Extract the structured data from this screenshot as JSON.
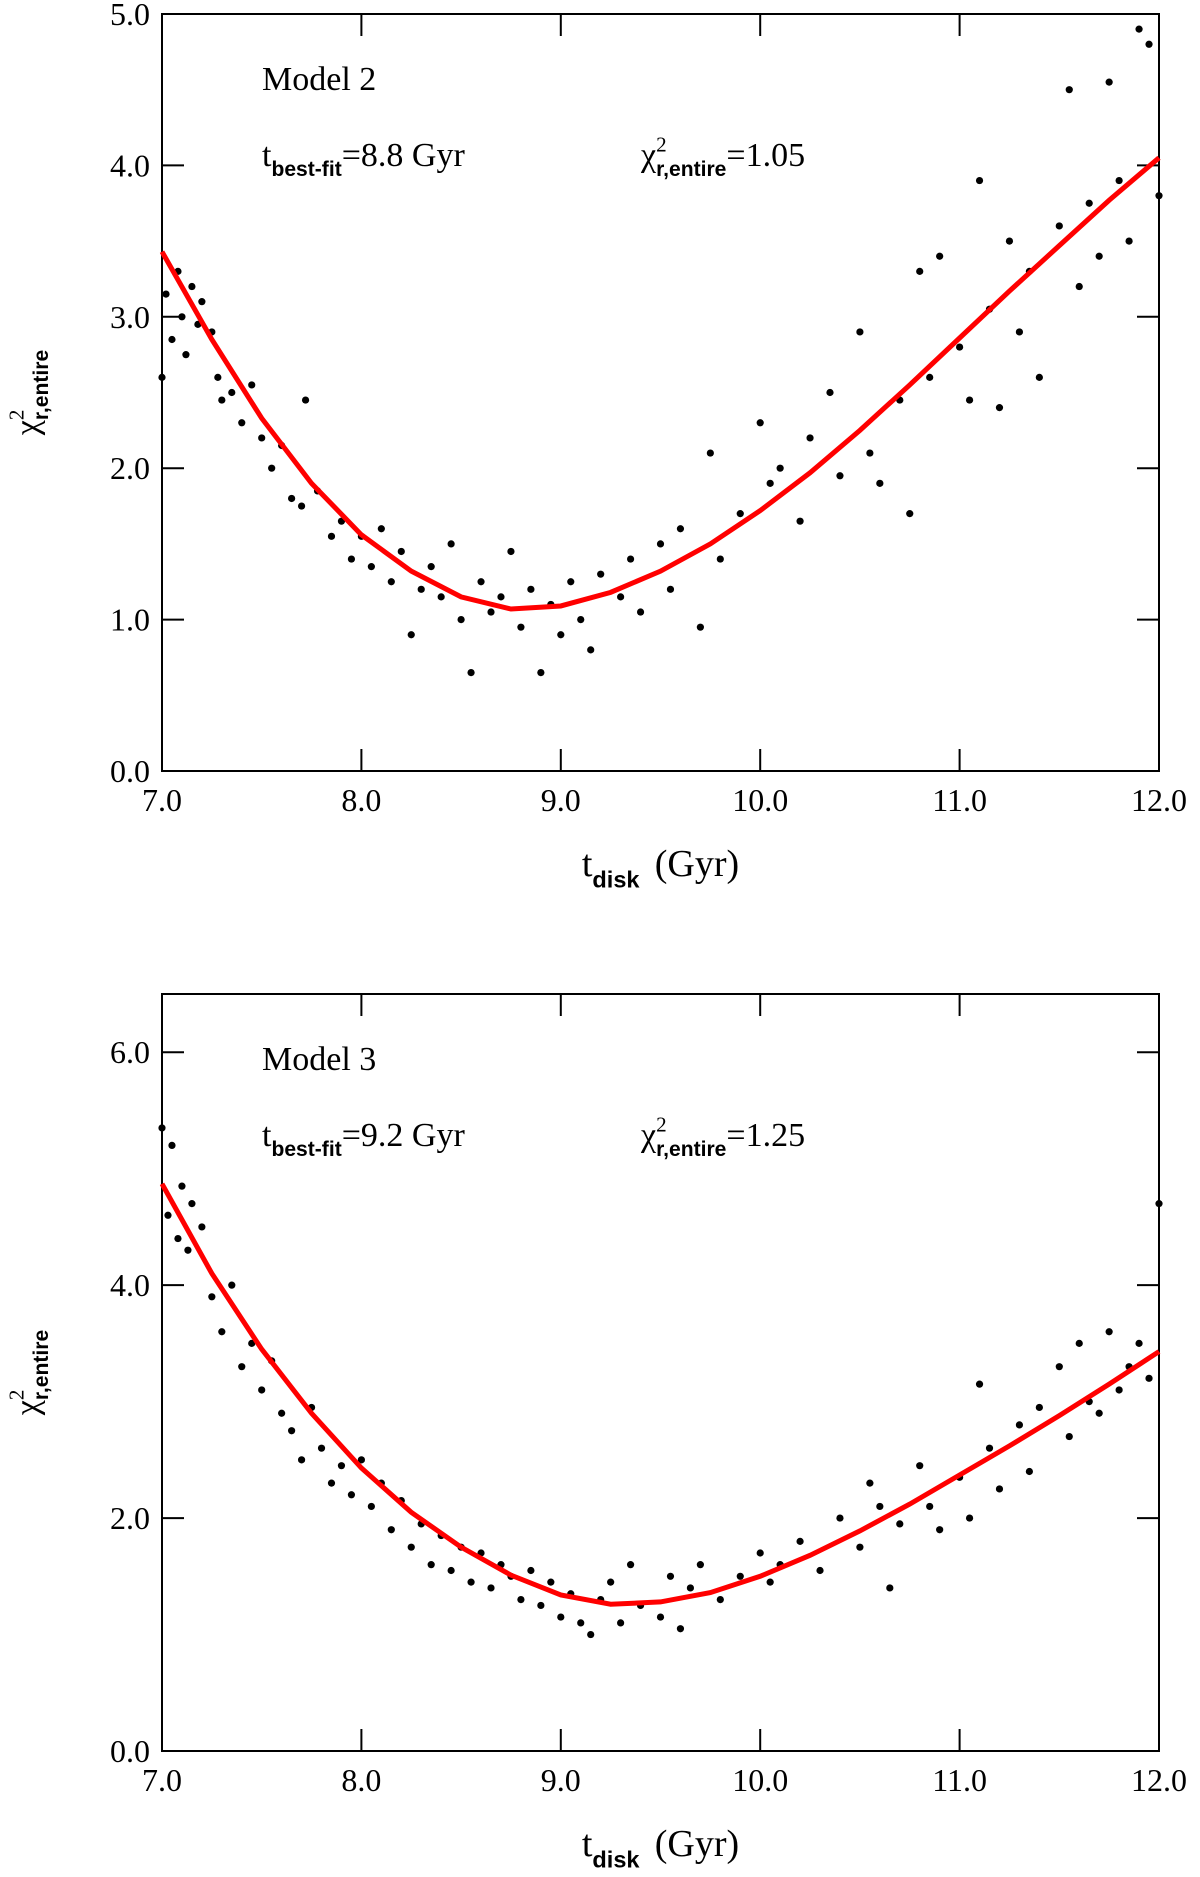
{
  "chart_data": [
    {
      "type": "scatter",
      "title": "Model 2",
      "fit_label": {
        "base": "t",
        "sub": "best-fit",
        "text": "=8.8 Gyr"
      },
      "chi_label": {
        "base": "χ",
        "sup": "2",
        "sub": "r,entire",
        "text": "=1.05"
      },
      "xlabel": {
        "base": "t",
        "sub": "disk",
        "text": "(Gyr)"
      },
      "ylabel": {
        "base": "χ",
        "sup": "2",
        "sub": "r,entire"
      },
      "xlim": [
        7,
        12
      ],
      "ylim": [
        0,
        5
      ],
      "xticks": [
        {
          "value": 7,
          "label": "7.0"
        },
        {
          "value": 8,
          "label": "8.0"
        },
        {
          "value": 9,
          "label": "9.0"
        },
        {
          "value": 10,
          "label": "10.0"
        },
        {
          "value": 11,
          "label": "11.0"
        },
        {
          "value": 12,
          "label": "12.0"
        }
      ],
      "yticks": [
        {
          "value": 0,
          "label": "0.0"
        },
        {
          "value": 1,
          "label": "1.0"
        },
        {
          "value": 2,
          "label": "2.0"
        },
        {
          "value": 3,
          "label": "3.0"
        },
        {
          "value": 4,
          "label": "4.0"
        },
        {
          "value": 5,
          "label": "5.0"
        }
      ],
      "points": {
        "color": "#000000",
        "x": [
          7.0,
          7.02,
          7.05,
          7.08,
          7.1,
          7.12,
          7.15,
          7.18,
          7.2,
          7.25,
          7.28,
          7.3,
          7.35,
          7.4,
          7.45,
          7.5,
          7.55,
          7.6,
          7.65,
          7.7,
          7.72,
          7.78,
          7.85,
          7.9,
          7.95,
          8.0,
          8.05,
          8.1,
          8.15,
          8.2,
          8.25,
          8.3,
          8.35,
          8.4,
          8.45,
          8.5,
          8.55,
          8.6,
          8.65,
          8.7,
          8.75,
          8.8,
          8.85,
          8.9,
          8.95,
          9.0,
          9.05,
          9.1,
          9.15,
          9.2,
          9.3,
          9.35,
          9.4,
          9.5,
          9.55,
          9.6,
          9.7,
          9.75,
          9.8,
          9.9,
          10.0,
          10.05,
          10.1,
          10.2,
          10.25,
          10.35,
          10.4,
          10.5,
          10.55,
          10.6,
          10.7,
          10.75,
          10.8,
          10.85,
          10.9,
          11.0,
          11.05,
          11.1,
          11.15,
          11.2,
          11.25,
          11.3,
          11.35,
          11.4,
          11.5,
          11.55,
          11.6,
          11.65,
          11.7,
          11.75,
          11.8,
          11.85,
          11.9,
          11.95,
          12.0
        ],
        "y": [
          2.6,
          3.15,
          2.85,
          3.3,
          3.0,
          2.75,
          3.2,
          2.95,
          3.1,
          2.9,
          2.6,
          2.45,
          2.5,
          2.3,
          2.55,
          2.2,
          2.0,
          2.15,
          1.8,
          1.75,
          2.45,
          1.85,
          1.55,
          1.65,
          1.4,
          1.55,
          1.35,
          1.6,
          1.25,
          1.45,
          0.9,
          1.2,
          1.35,
          1.15,
          1.5,
          1.0,
          0.65,
          1.25,
          1.05,
          1.15,
          1.45,
          0.95,
          1.2,
          0.65,
          1.1,
          0.9,
          1.25,
          1.0,
          0.8,
          1.3,
          1.15,
          1.4,
          1.05,
          1.5,
          1.2,
          1.6,
          0.95,
          2.1,
          1.4,
          1.7,
          2.3,
          1.9,
          2.0,
          1.65,
          2.2,
          2.5,
          1.95,
          2.9,
          2.1,
          1.9,
          2.45,
          1.7,
          3.3,
          2.6,
          3.4,
          2.8,
          2.45,
          3.9,
          3.05,
          2.4,
          3.5,
          2.9,
          3.3,
          2.6,
          3.6,
          4.5,
          3.2,
          3.75,
          3.4,
          4.55,
          3.9,
          3.5,
          4.9,
          4.8,
          3.8
        ]
      },
      "fit": {
        "color": "#ff0000",
        "x": [
          7.0,
          7.25,
          7.5,
          7.75,
          8.0,
          8.25,
          8.5,
          8.75,
          9.0,
          9.25,
          9.5,
          9.75,
          10.0,
          10.25,
          10.5,
          10.75,
          11.0,
          11.25,
          11.5,
          11.75,
          12.0
        ],
        "y": [
          3.43,
          2.85,
          2.33,
          1.9,
          1.56,
          1.32,
          1.15,
          1.07,
          1.09,
          1.18,
          1.32,
          1.5,
          1.72,
          1.97,
          2.25,
          2.55,
          2.86,
          3.17,
          3.47,
          3.77,
          4.05
        ]
      }
    },
    {
      "type": "scatter",
      "title": "Model 3",
      "fit_label": {
        "base": "t",
        "sub": "best-fit",
        "text": "=9.2 Gyr"
      },
      "chi_label": {
        "base": "χ",
        "sup": "2",
        "sub": "r,entire",
        "text": "=1.25"
      },
      "xlabel": {
        "base": "t",
        "sub": "disk",
        "text": "(Gyr)"
      },
      "ylabel": {
        "base": "χ",
        "sup": "2",
        "sub": "r,entire"
      },
      "xlim": [
        7,
        12
      ],
      "ylim": [
        0,
        6.5
      ],
      "xticks": [
        {
          "value": 7,
          "label": "7.0"
        },
        {
          "value": 8,
          "label": "8.0"
        },
        {
          "value": 9,
          "label": "9.0"
        },
        {
          "value": 10,
          "label": "10.0"
        },
        {
          "value": 11,
          "label": "11.0"
        },
        {
          "value": 12,
          "label": "12.0"
        }
      ],
      "yticks": [
        {
          "value": 0,
          "label": "0.0"
        },
        {
          "value": 2,
          "label": "2.0"
        },
        {
          "value": 4,
          "label": "4.0"
        },
        {
          "value": 6,
          "label": "6.0"
        }
      ],
      "points": {
        "color": "#000000",
        "x": [
          7.0,
          7.03,
          7.05,
          7.08,
          7.1,
          7.13,
          7.15,
          7.2,
          7.25,
          7.3,
          7.35,
          7.4,
          7.45,
          7.5,
          7.55,
          7.6,
          7.65,
          7.7,
          7.75,
          7.8,
          7.85,
          7.9,
          7.95,
          8.0,
          8.05,
          8.1,
          8.15,
          8.2,
          8.25,
          8.3,
          8.35,
          8.4,
          8.45,
          8.5,
          8.55,
          8.6,
          8.65,
          8.7,
          8.75,
          8.8,
          8.85,
          8.9,
          8.95,
          9.0,
          9.05,
          9.1,
          9.15,
          9.2,
          9.25,
          9.3,
          9.35,
          9.4,
          9.5,
          9.55,
          9.6,
          9.65,
          9.7,
          9.8,
          9.9,
          10.0,
          10.05,
          10.1,
          10.2,
          10.3,
          10.4,
          10.5,
          10.55,
          10.6,
          10.65,
          10.7,
          10.8,
          10.85,
          10.9,
          11.0,
          11.05,
          11.1,
          11.15,
          11.2,
          11.3,
          11.35,
          11.4,
          11.5,
          11.55,
          11.6,
          11.65,
          11.7,
          11.75,
          11.8,
          11.85,
          11.9,
          11.95,
          12.0
        ],
        "y": [
          5.35,
          4.6,
          5.2,
          4.4,
          4.85,
          4.3,
          4.7,
          4.5,
          3.9,
          3.6,
          4.0,
          3.3,
          3.5,
          3.1,
          3.35,
          2.9,
          2.75,
          2.5,
          2.95,
          2.6,
          2.3,
          2.45,
          2.2,
          2.5,
          2.1,
          2.3,
          1.9,
          2.15,
          1.75,
          1.95,
          1.6,
          1.85,
          1.55,
          1.75,
          1.45,
          1.7,
          1.4,
          1.6,
          1.5,
          1.3,
          1.55,
          1.25,
          1.45,
          1.15,
          1.35,
          1.1,
          1.0,
          1.3,
          1.45,
          1.1,
          1.6,
          1.25,
          1.15,
          1.5,
          1.05,
          1.4,
          1.6,
          1.3,
          1.5,
          1.7,
          1.45,
          1.6,
          1.8,
          1.55,
          2.0,
          1.75,
          2.3,
          2.1,
          1.4,
          1.95,
          2.45,
          2.1,
          1.9,
          2.35,
          2.0,
          3.15,
          2.6,
          2.25,
          2.8,
          2.4,
          2.95,
          3.3,
          2.7,
          3.5,
          3.0,
          2.9,
          3.6,
          3.1,
          3.3,
          3.5,
          3.2,
          4.7
        ]
      },
      "fit": {
        "color": "#ff0000",
        "x": [
          7.0,
          7.25,
          7.5,
          7.75,
          8.0,
          8.25,
          8.5,
          8.75,
          9.0,
          9.25,
          9.5,
          9.75,
          10.0,
          10.25,
          10.5,
          10.75,
          11.0,
          11.25,
          11.5,
          11.75,
          12.0
        ],
        "y": [
          4.87,
          4.1,
          3.45,
          2.9,
          2.43,
          2.05,
          1.75,
          1.51,
          1.34,
          1.26,
          1.28,
          1.36,
          1.5,
          1.68,
          1.89,
          2.12,
          2.37,
          2.62,
          2.88,
          3.15,
          3.43
        ]
      }
    }
  ]
}
